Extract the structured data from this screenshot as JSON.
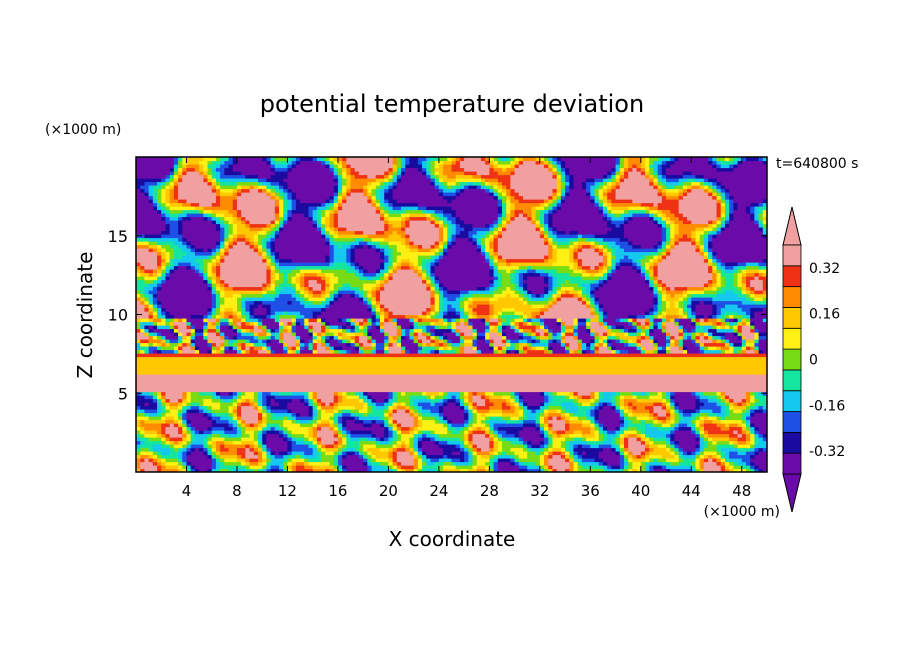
{
  "chart_data": {
    "type": "heatmap",
    "title": "potential temperature deviation",
    "time_label": "t=640800 s",
    "xlabel": "X coordinate",
    "ylabel": "Z coordinate",
    "x_unit": "(×1000 m)",
    "y_unit": "(×1000 m)",
    "xlim": [
      0,
      50
    ],
    "ylim": [
      0,
      20
    ],
    "x_ticks": [
      4,
      8,
      12,
      16,
      20,
      24,
      28,
      32,
      36,
      40,
      44,
      48
    ],
    "y_ticks": [
      5,
      10,
      15
    ],
    "colorbar": {
      "levels": [
        -0.4,
        -0.32,
        -0.24,
        -0.16,
        -0.08,
        0,
        0.08,
        0.16,
        0.24,
        0.32,
        0.4
      ],
      "tick_labels": [
        "-0.32",
        "-0.16",
        "0",
        "0.16",
        "0.32"
      ],
      "tick_values": [
        -0.32,
        -0.16,
        0,
        0.16,
        0.32
      ],
      "colors": [
        "#6a0aa8",
        "#1a0aa0",
        "#1e50e6",
        "#14c8f0",
        "#14e6a0",
        "#78dc14",
        "#fff014",
        "#ffc800",
        "#ff8c00",
        "#f03214",
        "#f0a0a0"
      ],
      "extend": "both"
    },
    "layers": [
      {
        "z_range": [
          0,
          5.2
        ],
        "pattern": "convective cells",
        "range": [
          -0.4,
          0.4
        ]
      },
      {
        "z_range": [
          5.2,
          6.2
        ],
        "pattern": "band",
        "value": 0.4
      },
      {
        "z_range": [
          6.2,
          7.3
        ],
        "pattern": "band",
        "value": 0.18
      },
      {
        "z_range": [
          7.3,
          7.6
        ],
        "pattern": "band",
        "value": 0.32
      },
      {
        "z_range": [
          7.6,
          9.8
        ],
        "pattern": "mixed",
        "range": [
          -0.4,
          0.4
        ]
      },
      {
        "z_range": [
          9.8,
          20
        ],
        "pattern": "large patches",
        "range": [
          -0.4,
          0.4
        ]
      }
    ]
  }
}
